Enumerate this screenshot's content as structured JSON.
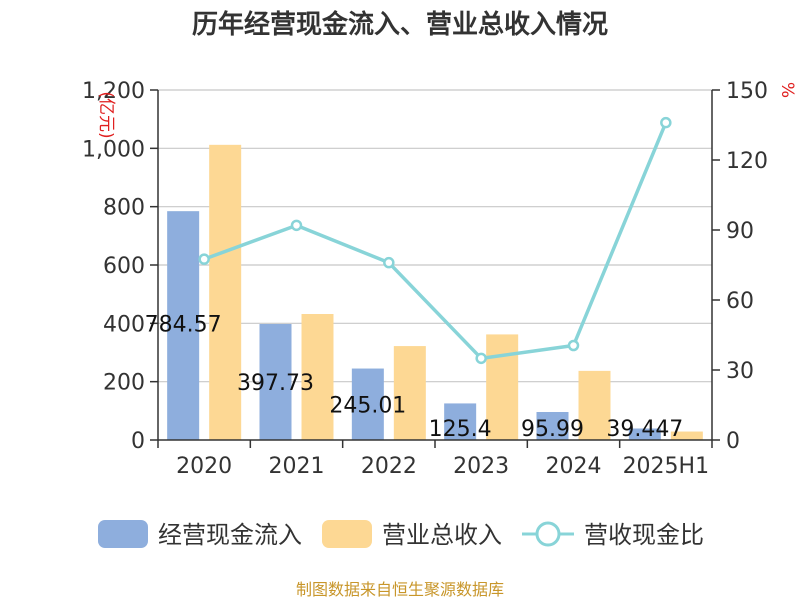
{
  "chart_data": {
    "type": "bar",
    "title": "历年经营现金流入、营业总收入情况",
    "categories": [
      "2020",
      "2021",
      "2022",
      "2023",
      "2024",
      "2025H1"
    ],
    "left_axis": {
      "unit": "(亿元)",
      "ylim": [
        0,
        1200
      ],
      "ticks": [
        0,
        200,
        400,
        600,
        800,
        1000,
        1200
      ],
      "tick_labels": [
        "0",
        "200",
        "400",
        "600",
        "800",
        "1,000",
        "1,200"
      ]
    },
    "right_axis": {
      "unit": "%",
      "ylim": [
        0,
        150
      ],
      "ticks": [
        0,
        30,
        60,
        90,
        120,
        150
      ],
      "tick_labels": [
        "0",
        "30",
        "60",
        "90",
        "120",
        "150"
      ]
    },
    "series": [
      {
        "name": "经营现金流入",
        "type": "bar",
        "axis": "left",
        "color": "#8eaedd",
        "values": [
          784.57,
          397.73,
          245.01,
          125.4,
          95.99,
          39.447
        ],
        "data_labels": [
          "784.57",
          "397.73",
          "245.01",
          "125.4",
          "95.99",
          "39.447"
        ]
      },
      {
        "name": "营业总收入",
        "type": "bar",
        "axis": "left",
        "color": "#fdd894",
        "values": [
          1012,
          432,
          322,
          362,
          237,
          29
        ]
      },
      {
        "name": "营收现金比",
        "type": "line",
        "axis": "right",
        "color": "#88d4d8",
        "values": [
          77.5,
          92,
          76,
          35,
          40.5,
          136
        ]
      }
    ],
    "grid": true,
    "legend_position": "bottom",
    "source": "制图数据来自恒生聚源数据库"
  }
}
